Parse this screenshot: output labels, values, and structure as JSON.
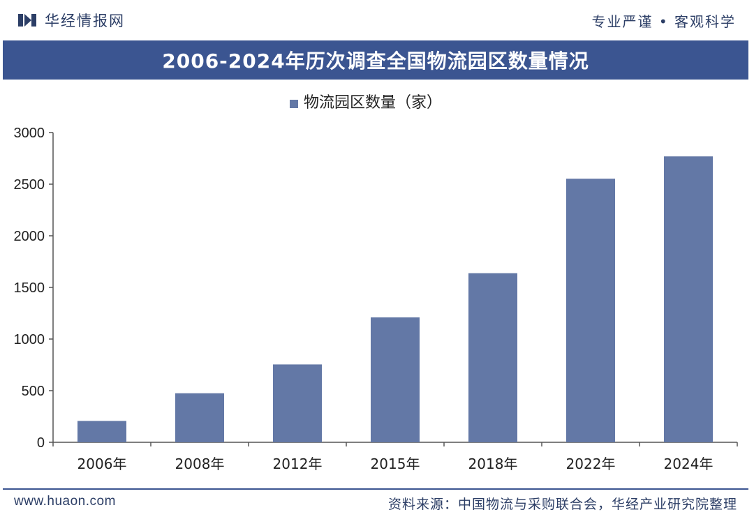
{
  "header": {
    "brand": "华经情报网",
    "slogan": "专业严谨 • 客观科学"
  },
  "colors": {
    "accent": "#3b5591",
    "bar": "#6378a6",
    "axis": "#555555",
    "text": "#222222"
  },
  "chart_data": {
    "type": "bar",
    "title": "2006-2024年历次调查全国物流园区数量情况",
    "categories": [
      "2006年",
      "2008年",
      "2012年",
      "2015年",
      "2018年",
      "2022年",
      "2024年"
    ],
    "series": [
      {
        "name": "物流园区数量（家）",
        "values": [
          207,
          475,
          754,
          1210,
          1638,
          2553,
          2769
        ]
      }
    ],
    "ylim": [
      0,
      3000
    ],
    "yticks": [
      0,
      500,
      1000,
      1500,
      2000,
      2500,
      3000
    ],
    "grid": false,
    "legend": "top-center"
  },
  "footer": {
    "website": "www.huaon.com",
    "source": "资料来源：中国物流与采购联合会，华经产业研究院整理"
  }
}
